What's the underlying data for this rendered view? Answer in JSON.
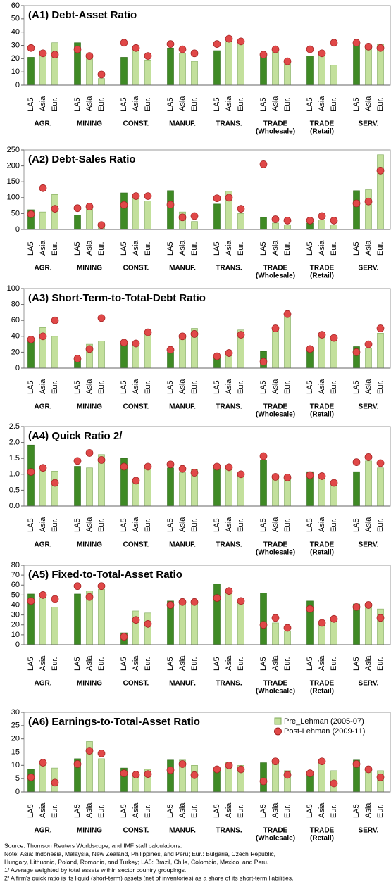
{
  "chart_data": [
    {
      "type": "bar",
      "title": "(A1) Debt-Asset Ratio",
      "regions": [
        "LA5",
        "Asia",
        "Eur."
      ],
      "sectors": [
        "AGR.",
        "MINING",
        "CONST.",
        "MANUF.",
        "TRANS.",
        "TRADE",
        "TRADE",
        "SERV."
      ],
      "sector_subtitles": [
        null,
        null,
        null,
        null,
        null,
        "(Wholesale)",
        "(Retail)",
        null
      ],
      "ylim": [
        0,
        60
      ],
      "yticks": [
        0,
        10,
        20,
        30,
        40,
        50,
        60
      ],
      "series": [
        {
          "name": "Pre_Lehman (2005-07)",
          "color": "#c3e09c",
          "la5_color": "#3f8a25",
          "values": [
            21,
            26,
            32,
            32,
            21,
            5,
            21,
            27,
            19,
            28,
            24,
            18,
            26,
            33,
            31,
            24,
            26,
            17,
            22,
            23,
            15,
            31,
            30,
            31
          ]
        },
        {
          "name": "Post-Lehman (2009-11)",
          "color": "#e04848",
          "values": [
            28,
            24,
            23,
            27,
            22,
            8,
            32,
            28,
            22,
            31,
            27,
            24,
            31,
            35,
            33,
            23,
            27,
            18,
            27,
            24,
            32,
            32,
            29,
            28
          ]
        }
      ]
    },
    {
      "type": "bar",
      "title": "(A2) Debt-Sales Ratio",
      "regions": [
        "LA5",
        "Asia",
        "Eur."
      ],
      "sectors": [
        "AGR.",
        "MINING",
        "CONST.",
        "MANUF.",
        "TRANS.",
        "TRADE",
        "TRADE",
        "SERV."
      ],
      "sector_subtitles": [
        null,
        null,
        null,
        null,
        null,
        "(Wholesale)",
        "(Retail)",
        null
      ],
      "ylim": [
        0,
        250
      ],
      "yticks": [
        0,
        50,
        100,
        150,
        200,
        250
      ],
      "series": [
        {
          "name": "Pre_Lehman (2005-07)",
          "color": "#c3e09c",
          "la5_color": "#3f8a25",
          "values": [
            62,
            55,
            110,
            45,
            65,
            10,
            115,
            105,
            90,
            122,
            55,
            25,
            80,
            120,
            50,
            38,
            20,
            15,
            20,
            30,
            15,
            122,
            125,
            235
          ]
        },
        {
          "name": "Post-Lehman (2009-11)",
          "color": "#e04848",
          "values": [
            48,
            130,
            65,
            67,
            72,
            14,
            77,
            105,
            105,
            78,
            38,
            42,
            98,
            100,
            65,
            205,
            32,
            28,
            28,
            42,
            28,
            82,
            88,
            185
          ]
        }
      ]
    },
    {
      "type": "bar",
      "title": "(A3) Short-Term-to-Total-Debt Ratio",
      "regions": [
        "LA5",
        "Asia",
        "Eur."
      ],
      "sectors": [
        "AGR.",
        "MINING",
        "CONST.",
        "MANUF.",
        "TRANS.",
        "TRADE",
        "TRADE",
        "SERV."
      ],
      "sector_subtitles": [
        null,
        null,
        null,
        null,
        null,
        "(Wholesale)",
        "(Retail)",
        null
      ],
      "ylim": [
        0,
        100
      ],
      "yticks": [
        0,
        20,
        40,
        60,
        80,
        100
      ],
      "series": [
        {
          "name": "Pre_Lehman (2005-07)",
          "color": "#c3e09c",
          "la5_color": "#3f8a25",
          "values": [
            35,
            51,
            40,
            13,
            30,
            34,
            30,
            30,
            44,
            20,
            40,
            50,
            13,
            17,
            48,
            21,
            50,
            65,
            25,
            40,
            40,
            27,
            25,
            44
          ]
        },
        {
          "name": "Post-Lehman (2009-11)",
          "color": "#e04848",
          "values": [
            36,
            40,
            60,
            12,
            24,
            63,
            32,
            31,
            45,
            23,
            40,
            43,
            15,
            19,
            42,
            8,
            50,
            68,
            24,
            42,
            38,
            20,
            30,
            50
          ]
        }
      ]
    },
    {
      "type": "bar",
      "title": "(A4) Quick Ratio 2/",
      "regions": [
        "LA5",
        "Asia",
        "Eur."
      ],
      "sectors": [
        "AGR.",
        "MINING",
        "CONST.",
        "MANUF.",
        "TRANS.",
        "TRADE",
        "TRADE",
        "SERV."
      ],
      "sector_subtitles": [
        null,
        null,
        null,
        null,
        null,
        "(Wholesale)",
        "(Retail)",
        null
      ],
      "ylim": [
        0,
        2.5
      ],
      "yticks": [
        {
          "value": 0,
          "label": "0.0"
        },
        0.5,
        {
          "value": 1,
          "label": "1.0"
        },
        1.5,
        {
          "value": 2,
          "label": "2.0"
        },
        2.5
      ],
      "series": [
        {
          "name": "Pre_Lehman (2005-07)",
          "color": "#c3e09c",
          "la5_color": "#3f8a25",
          "values": [
            1.92,
            1.12,
            1.1,
            1.25,
            1.2,
            1.62,
            1.5,
            0.8,
            1.18,
            1.2,
            1.05,
            1.15,
            1.22,
            1.2,
            1.0,
            1.45,
            0.88,
            0.88,
            1.08,
            0.88,
            0.68,
            1.08,
            1.42,
            1.2
          ]
        },
        {
          "name": "Post-Lehman (2009-11)",
          "color": "#e04848",
          "values": [
            1.07,
            1.2,
            0.73,
            1.42,
            1.67,
            1.45,
            1.24,
            0.8,
            1.24,
            1.31,
            1.17,
            1.05,
            1.24,
            1.22,
            1.0,
            1.57,
            0.92,
            0.9,
            0.97,
            0.94,
            0.73,
            1.38,
            1.54,
            1.35
          ]
        }
      ]
    },
    {
      "type": "bar",
      "title": "(A5) Fixed-to-Total-Asset Ratio",
      "regions": [
        "LA5",
        "Asia",
        "Eur."
      ],
      "sectors": [
        "AGR.",
        "MINING",
        "CONST.",
        "MANUF.",
        "TRANS.",
        "TRADE",
        "TRADE",
        "SERV."
      ],
      "sector_subtitles": [
        null,
        null,
        null,
        null,
        null,
        "(Wholesale)",
        "(Retail)",
        null
      ],
      "ylim": [
        0,
        80
      ],
      "yticks": [
        0,
        10,
        20,
        30,
        40,
        50,
        60,
        70,
        80
      ],
      "series": [
        {
          "name": "Pre_Lehman (2005-07)",
          "color": "#c3e09c",
          "la5_color": "#3f8a25",
          "values": [
            51,
            47,
            38,
            51,
            54,
            56,
            12,
            34,
            32,
            44,
            43,
            42,
            61,
            54,
            43,
            52,
            22,
            14,
            44,
            22,
            26,
            41,
            42,
            36
          ]
        },
        {
          "name": "Post-Lehman (2009-11)",
          "color": "#e04848",
          "values": [
            44,
            50,
            46,
            59,
            48,
            59,
            8,
            25,
            21,
            40,
            43,
            43,
            47,
            54,
            44,
            20,
            27,
            17,
            36,
            22,
            26,
            38,
            40,
            27
          ]
        }
      ]
    },
    {
      "type": "bar",
      "title": "(A6) Earnings-to-Total-Asset Ratio",
      "regions": [
        "LA5",
        "Asia",
        "Eur."
      ],
      "sectors": [
        "AGR.",
        "MINING",
        "CONST.",
        "MANUF.",
        "TRANS.",
        "TRADE",
        "TRADE",
        "SERV."
      ],
      "sector_subtitles": [
        null,
        null,
        null,
        null,
        null,
        "(Wholesale)",
        "(Retail)",
        null
      ],
      "ylim": [
        0,
        30
      ],
      "yticks": [
        0,
        5,
        10,
        15,
        20,
        25,
        30
      ],
      "legend": "upper right",
      "series": [
        {
          "name": "Pre_Lehman (2005-07)",
          "color": "#c3e09c",
          "la5_color": "#3f8a25",
          "values": [
            8.5,
            11,
            9,
            12.5,
            19,
            12.5,
            9,
            6,
            8.5,
            12,
            12,
            10,
            9,
            11.3,
            10,
            11,
            11,
            8,
            7,
            11.5,
            8,
            12,
            9,
            8
          ]
        },
        {
          "name": "Post-Lehman (2009-11)",
          "color": "#e04848",
          "values": [
            5.5,
            11,
            3.5,
            10.5,
            15.5,
            14.5,
            7,
            6.5,
            6.7,
            8.2,
            10.5,
            6.3,
            8.5,
            10,
            8.5,
            4,
            11.5,
            6.4,
            7,
            11.5,
            3.2,
            10.5,
            8.5,
            5.5
          ]
        }
      ]
    }
  ],
  "notes": [
    "Source: Thomson Reuters Worldscope; and IMF staff calculations.",
    "Note: Asia:  Indonesia, Malaysia, New Zealand, Philippines, and Peru; Eur.: Bulgaria, Czech Republic,",
    "Hungary, Lithuania, Poland, Romania, and Turkey; LA5: Brazil, Chile, Colombia, Mexico, and Peru.",
    "1/ Average weighted by total assets within  sector country groupings.",
    "2/ A firm's quick ratio is its liquid  (short-term) assets (net of inventories) as a share of its short-term liabilities."
  ]
}
